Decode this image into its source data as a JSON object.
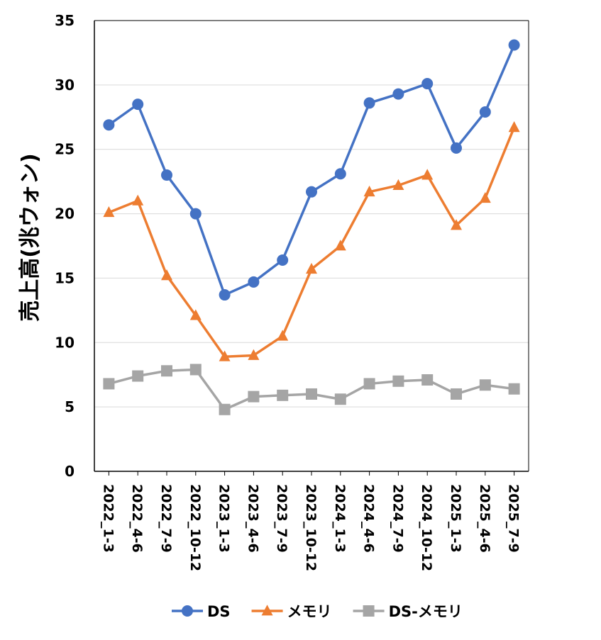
{
  "chart_data": {
    "type": "line",
    "title": "",
    "xlabel": "",
    "ylabel": "売上高(兆ウォン)",
    "ylim": [
      0,
      35
    ],
    "yticks": [
      0,
      5,
      10,
      15,
      20,
      25,
      30,
      35
    ],
    "grid": true,
    "legend_position": "bottom",
    "categories": [
      "2022_1-3",
      "2022_4-6",
      "2022_7-9",
      "2022_10-12",
      "2023_1-3",
      "2023_4-6",
      "2023_7-9",
      "2023_10-12",
      "2024_1-3",
      "2024_4-6",
      "2024_7-9",
      "2024_10-12",
      "2025_1-3",
      "2025_4-6",
      "2025_7-9"
    ],
    "series": [
      {
        "name": "DS",
        "color": "#4472C4",
        "marker": "circle",
        "values": [
          26.9,
          28.5,
          23.0,
          20.0,
          13.7,
          14.7,
          16.4,
          21.7,
          23.1,
          28.6,
          29.3,
          30.1,
          25.1,
          27.9,
          33.1
        ]
      },
      {
        "name": "メモリ",
        "color": "#ED7D31",
        "marker": "triangle",
        "values": [
          20.1,
          21.0,
          15.2,
          12.1,
          8.9,
          9.0,
          10.5,
          15.7,
          17.5,
          21.7,
          22.2,
          23.0,
          19.1,
          21.2,
          26.7
        ]
      },
      {
        "name": "DS-メモリ",
        "color": "#A5A5A5",
        "marker": "square",
        "values": [
          6.8,
          7.4,
          7.8,
          7.9,
          4.8,
          5.8,
          5.9,
          6.0,
          5.6,
          6.8,
          7.0,
          7.1,
          6.0,
          6.7,
          6.4
        ]
      }
    ]
  }
}
